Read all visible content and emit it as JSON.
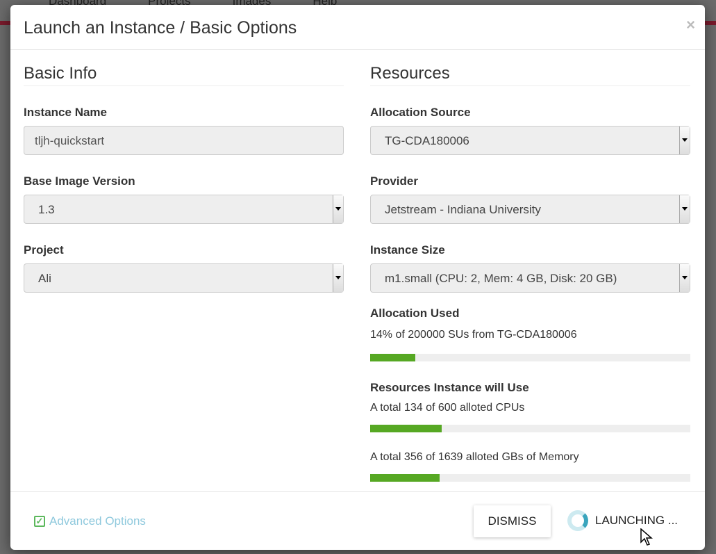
{
  "background_nav": [
    "Dashboard",
    "Projects",
    "Images",
    "Help"
  ],
  "modal": {
    "title": "Launch an Instance / Basic Options",
    "close": "×",
    "basic_info": {
      "heading": "Basic Info",
      "instance_name_label": "Instance Name",
      "instance_name_value": "tljh-quickstart",
      "base_image_label": "Base Image Version",
      "base_image_value": "1.3",
      "project_label": "Project",
      "project_value": "Ali"
    },
    "resources": {
      "heading": "Resources",
      "allocation_source_label": "Allocation Source",
      "allocation_source_value": "TG-CDA180006",
      "provider_label": "Provider",
      "provider_value": "Jetstream - Indiana University",
      "instance_size_label": "Instance Size",
      "instance_size_value": "m1.small (CPU: 2, Mem: 4 GB, Disk: 20 GB)",
      "allocation_used_label": "Allocation Used",
      "allocation_used_text": "14% of 200000 SUs from TG-CDA180006",
      "allocation_used_percent": 14,
      "resources_label": "Resources Instance will Use",
      "cpu_text": "A total 134 of 600 alloted CPUs",
      "cpu_percent": 22.3,
      "memory_text": "A total 356 of 1639 alloted GBs of Memory",
      "memory_percent": 21.7,
      "bar_color": "#56a823"
    },
    "footer": {
      "advanced_options": "Advanced Options",
      "dismiss": "DISMISS",
      "launching": "LAUNCHING ..."
    }
  }
}
